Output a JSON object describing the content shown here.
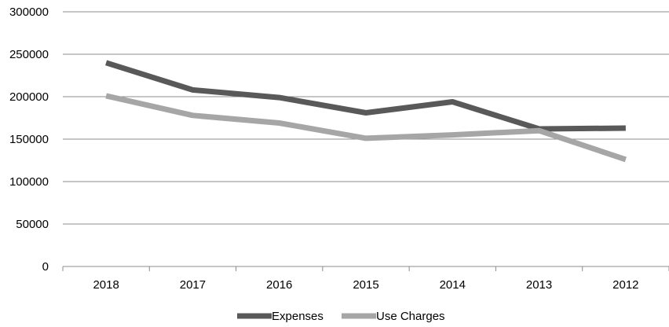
{
  "chart_data": {
    "type": "line",
    "title": "",
    "xlabel": "",
    "ylabel": "",
    "categories": [
      "2018",
      "2017",
      "2016",
      "2015",
      "2014",
      "2013",
      "2012"
    ],
    "series": [
      {
        "name": "Expenses",
        "color": "#595959",
        "values": [
          240000,
          208000,
          199000,
          181000,
          194000,
          162000,
          163000
        ]
      },
      {
        "name": "Use Charges",
        "color": "#a6a6a6",
        "values": [
          201000,
          178000,
          169000,
          151000,
          155000,
          160000,
          126000
        ]
      }
    ],
    "yticks": [
      "0",
      "50000",
      "100000",
      "150000",
      "200000",
      "250000",
      "300000"
    ],
    "ylim": [
      0,
      300000
    ],
    "grid": true,
    "legend_position": "bottom"
  }
}
